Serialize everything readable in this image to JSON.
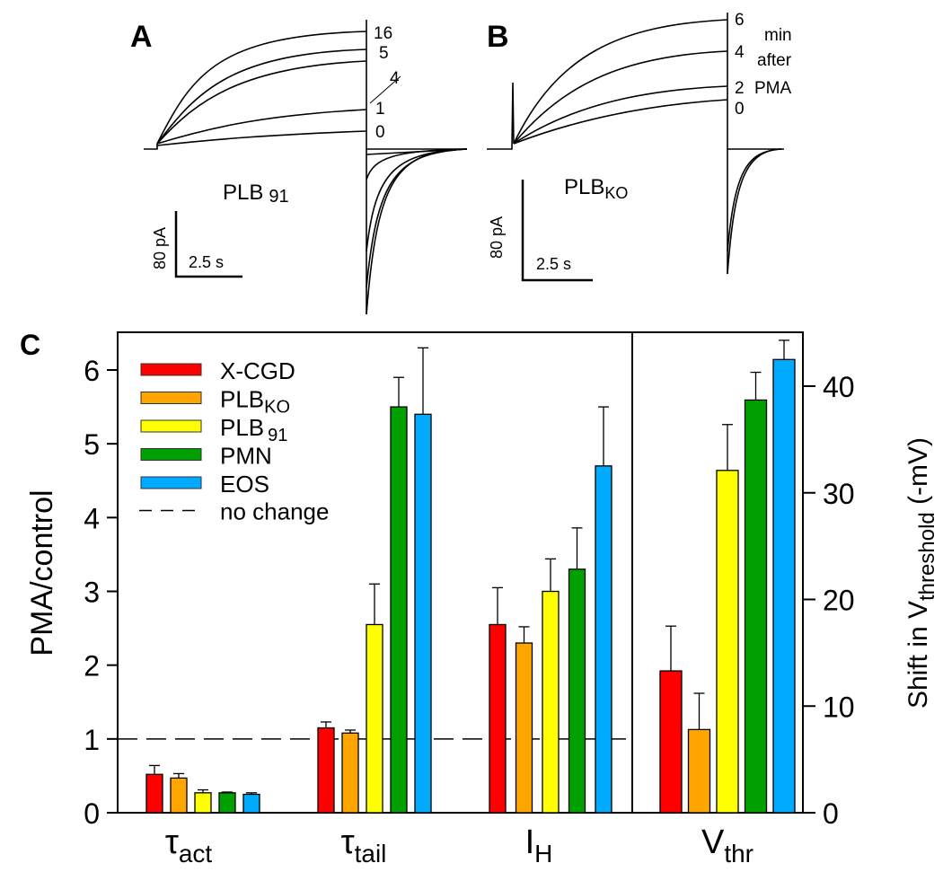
{
  "panel_a": {
    "label": "A",
    "trace_labels": [
      "16",
      "5",
      "4",
      "1",
      "0"
    ],
    "cell": "PLB",
    "cell_sub": "91",
    "scale_y": "80 pA",
    "scale_x": "2.5 s"
  },
  "panel_b": {
    "label": "B",
    "trace_labels": [
      "6",
      "4",
      "2",
      "0"
    ],
    "note": [
      "min",
      "after",
      "PMA"
    ],
    "cell": "PLB",
    "cell_sub": "KO",
    "scale_y": "80 pA",
    "scale_x": "2.5 s"
  },
  "chart_data": {
    "type": "bar",
    "panel_label": "C",
    "categories": [
      {
        "main": "τ",
        "sub": "act"
      },
      {
        "main": "τ",
        "sub": "tail"
      },
      {
        "main": "I",
        "sub": "H"
      },
      {
        "main": "V",
        "sub": "thr"
      }
    ],
    "ylabel": "PMA/control",
    "ylim": [
      0,
      6.5
    ],
    "yticks": [
      "0",
      "1",
      "2",
      "3",
      "4",
      "5",
      "6"
    ],
    "y2label": {
      "main": "Shift in V",
      "sub": "threshold",
      "tail": " (-mV)"
    },
    "y2lim": [
      0,
      45
    ],
    "y2ticks": [
      "0",
      "10",
      "20",
      "30",
      "40"
    ],
    "reference_line": {
      "value": 1,
      "label": "no change"
    },
    "series": [
      {
        "name": "X-CGD",
        "sub": "",
        "color": "#ff0000",
        "values": [
          0.52,
          1.15,
          2.55,
          13.3
        ],
        "errors": [
          0.12,
          0.08,
          0.5,
          4.2
        ]
      },
      {
        "name": "PLB",
        "sub": "KO",
        "color": "#ffa500",
        "values": [
          0.47,
          1.08,
          2.3,
          7.8
        ],
        "errors": [
          0.06,
          0.04,
          0.22,
          3.4
        ]
      },
      {
        "name": "PLB",
        "sub": "91",
        "color": "#ffff00",
        "values": [
          0.27,
          2.55,
          3.0,
          32.1
        ],
        "errors": [
          0.04,
          0.55,
          0.44,
          4.3
        ]
      },
      {
        "name": "PMN",
        "sub": "",
        "color": "#00a000",
        "values": [
          0.27,
          5.5,
          3.3,
          38.7
        ],
        "errors": [
          0.01,
          0.4,
          0.56,
          2.6
        ]
      },
      {
        "name": "EOS",
        "sub": "",
        "color": "#00aaff",
        "values": [
          0.25,
          5.4,
          4.7,
          42.5
        ],
        "errors": [
          0.02,
          0.9,
          0.8,
          1.8
        ]
      }
    ],
    "vthr_axis": "right"
  }
}
